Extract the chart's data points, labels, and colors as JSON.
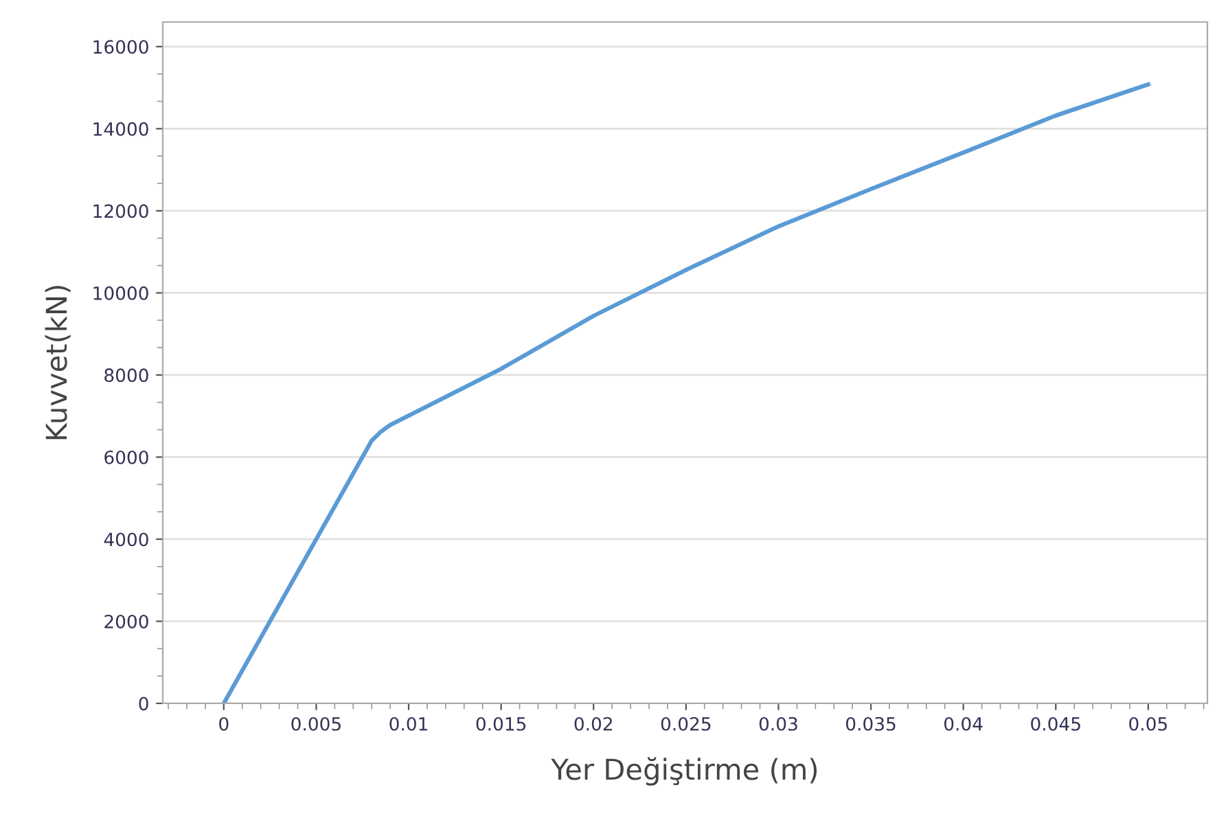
{
  "chart_data": {
    "type": "line",
    "xlabel": "Yer Değiştirme (m)",
    "ylabel": "Kuvvet(kN)",
    "series": [
      {
        "color": "#5b9bd5",
        "x": [
          0,
          0.008,
          0.0085,
          0.009,
          0.015,
          0.02,
          0.025,
          0.03,
          0.035,
          0.04,
          0.045,
          0.05
        ],
        "values": [
          0,
          6400,
          6620,
          6780,
          8150,
          9440,
          10560,
          11620,
          12530,
          13420,
          14320,
          15080
        ]
      }
    ],
    "xlim": [
      -0.0033,
      0.0532
    ],
    "ylim": [
      0,
      16600
    ],
    "xticks": [
      0,
      0.005,
      0.01,
      0.015,
      0.02,
      0.025,
      0.03,
      0.035,
      0.04,
      0.045,
      0.05
    ],
    "yticks": [
      0,
      2000,
      4000,
      6000,
      8000,
      10000,
      12000,
      14000,
      16000
    ],
    "grid": "y",
    "marker": "none",
    "line_style": "solid"
  }
}
